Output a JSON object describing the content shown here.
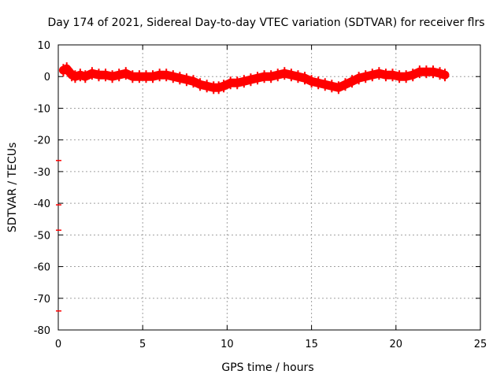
{
  "chart_data": {
    "type": "scatter",
    "title": "Day 174 of 2021, Sidereal Day-to-day VTEC variation (SDTVAR) for receiver flrs",
    "xlabel": "GPS time / hours",
    "ylabel": "SDTVAR / TECUs",
    "xlim": [
      0,
      25
    ],
    "ylim": [
      -80,
      10
    ],
    "xticks": [
      0,
      5,
      10,
      15,
      20,
      25
    ],
    "yticks": [
      10,
      0,
      -10,
      -20,
      -30,
      -40,
      -50,
      -60,
      -70,
      -80
    ],
    "grid": true,
    "series": [
      {
        "color": "#ff0000",
        "x": [
          0.3,
          0.5,
          0.8,
          1.0,
          1.3,
          1.6,
          2.0,
          2.4,
          2.8,
          3.2,
          3.6,
          4.0,
          4.4,
          4.8,
          5.2,
          5.6,
          6.0,
          6.4,
          6.8,
          7.2,
          7.6,
          8.0,
          8.4,
          8.8,
          9.2,
          9.5,
          9.8,
          10.2,
          10.6,
          11.0,
          11.4,
          11.8,
          12.2,
          12.6,
          13.0,
          13.4,
          13.8,
          14.2,
          14.6,
          15.0,
          15.4,
          15.8,
          16.2,
          16.6,
          17.0,
          17.4,
          17.8,
          18.2,
          18.6,
          19.0,
          19.4,
          19.8,
          20.2,
          20.6,
          21.0,
          21.4,
          21.8,
          22.2,
          22.6,
          22.9
        ],
        "y": [
          2.0,
          2.5,
          0.5,
          0.0,
          0.5,
          0.0,
          1.0,
          0.5,
          0.5,
          0.0,
          0.5,
          1.0,
          0.0,
          0.0,
          0.0,
          0.0,
          0.5,
          0.5,
          0.0,
          -0.5,
          -1.0,
          -1.5,
          -2.5,
          -3.0,
          -3.5,
          -3.5,
          -3.0,
          -2.0,
          -2.0,
          -1.5,
          -1.0,
          -0.5,
          0.0,
          0.0,
          0.5,
          1.0,
          0.5,
          0.0,
          -0.5,
          -1.5,
          -2.0,
          -2.5,
          -3.0,
          -3.5,
          -2.5,
          -1.5,
          -0.5,
          0.0,
          0.5,
          1.0,
          0.5,
          0.5,
          0.0,
          0.0,
          0.5,
          1.5,
          1.5,
          1.5,
          1.0,
          0.5
        ]
      },
      {
        "color": "#ff0000",
        "x": [
          0.0,
          0.0,
          0.0,
          0.0
        ],
        "y": [
          -26.5,
          -40.5,
          -48.5,
          -74.0
        ]
      }
    ]
  }
}
